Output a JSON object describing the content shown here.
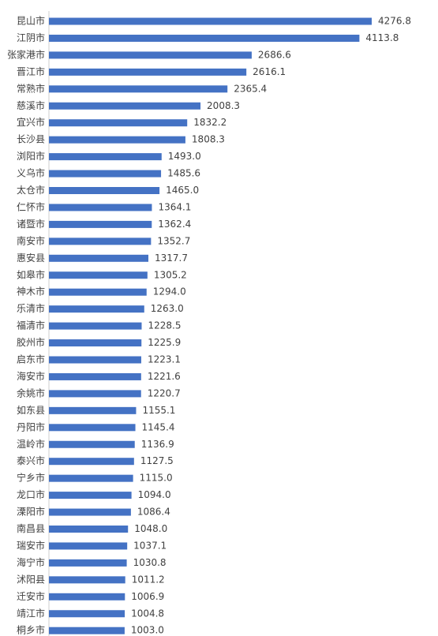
{
  "chart_data": {
    "type": "bar",
    "orientation": "horizontal",
    "categories": [
      "昆山市",
      "江阴市",
      "张家港市",
      "晋江市",
      "常熟市",
      "慈溪市",
      "宜兴市",
      "长沙县",
      "浏阳市",
      "义乌市",
      "太仓市",
      "仁怀市",
      "诸暨市",
      "南安市",
      "惠安县",
      "如皋市",
      "神木市",
      "乐清市",
      "福清市",
      "胶州市",
      "启东市",
      "海安市",
      "余姚市",
      "如东县",
      "丹阳市",
      "温岭市",
      "泰兴市",
      "宁乡市",
      "龙口市",
      "溧阳市",
      "南昌县",
      "瑞安市",
      "海宁市",
      "沭阳县",
      "迁安市",
      "靖江市",
      "桐乡市"
    ],
    "values": [
      4276.8,
      4113.8,
      2686.6,
      2616.1,
      2365.4,
      2008.3,
      1832.2,
      1808.3,
      1493.0,
      1485.6,
      1465.0,
      1364.1,
      1362.4,
      1352.7,
      1317.7,
      1305.2,
      1294.0,
      1263.0,
      1228.5,
      1225.9,
      1223.1,
      1221.6,
      1220.7,
      1155.1,
      1145.4,
      1136.9,
      1127.5,
      1115.0,
      1094.0,
      1086.4,
      1048.0,
      1037.1,
      1030.8,
      1011.2,
      1006.9,
      1004.8,
      1003.0
    ],
    "value_labels": [
      "4276.8",
      "4113.8",
      "2686.6",
      "2616.1",
      "2365.4",
      "2008.3",
      "1832.2",
      "1808.3",
      "1493.0",
      "1485.6",
      "1465.0",
      "1364.1",
      "1362.4",
      "1352.7",
      "1317.7",
      "1305.2",
      "1294.0",
      "1263.0",
      "1228.5",
      "1225.9",
      "1223.1",
      "1221.6",
      "1220.7",
      "1155.1",
      "1145.4",
      "1136.9",
      "1127.5",
      "1115.0",
      "1094.0",
      "1086.4",
      "1048.0",
      "1037.1",
      "1030.8",
      "1011.2",
      "1006.9",
      "1004.8",
      "1003.0"
    ],
    "xlim": [
      0,
      4276.8
    ],
    "grid": false,
    "legend": "none",
    "colors": {
      "bar": "#4472c4",
      "text": "#404040",
      "axis": "#cfcfcf"
    }
  }
}
